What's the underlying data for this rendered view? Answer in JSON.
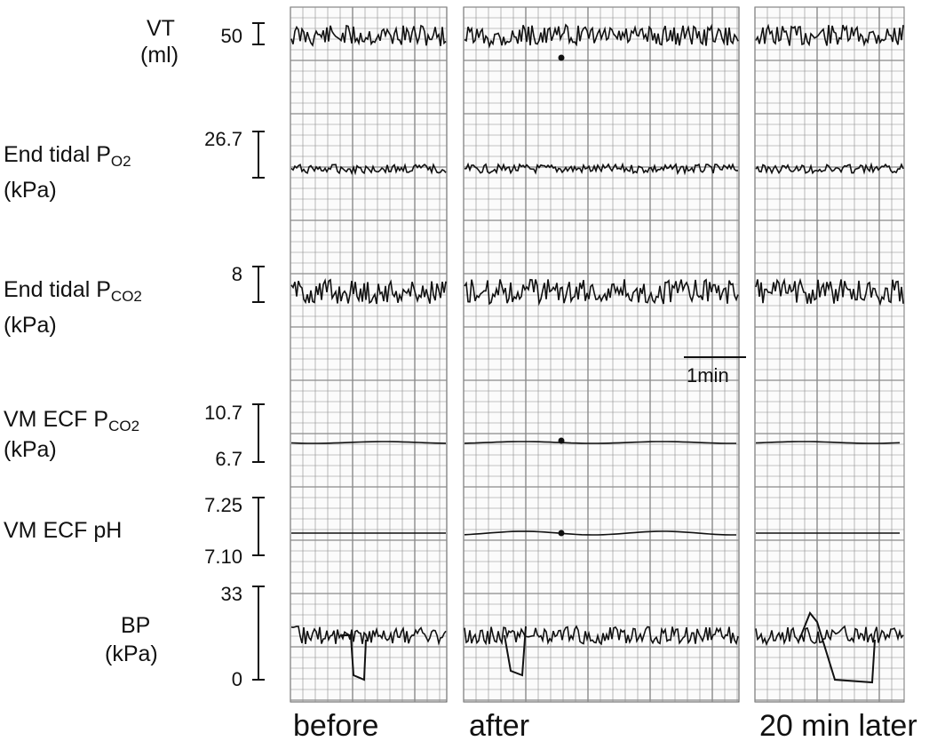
{
  "figure": {
    "conditions": [
      "before",
      "after",
      "20 min later"
    ],
    "scale_bar_label": "1min",
    "traces": [
      {
        "id": "vt",
        "label_main": "VT",
        "label_sub": "",
        "unit": "(ml)",
        "ticks": [
          "50"
        ]
      },
      {
        "id": "po2",
        "label_main": "End tidal P",
        "label_sub": "O2",
        "unit": "(kPa)",
        "ticks": [
          "26.7"
        ]
      },
      {
        "id": "pco2",
        "label_main": "End tidal P",
        "label_sub": "CO2",
        "unit": "(kPa)",
        "ticks": [
          "8"
        ]
      },
      {
        "id": "ecf_pco2",
        "label_main": "VM ECF P",
        "label_sub": "CO2",
        "unit": "(kPa)",
        "ticks": [
          "10.7",
          "6.7"
        ]
      },
      {
        "id": "ecf_ph",
        "label_main": "VM ECF pH",
        "label_sub": "",
        "unit": "",
        "ticks": [
          "7.25",
          "7.10"
        ]
      },
      {
        "id": "bp",
        "label_main": "BP",
        "label_sub": "",
        "unit": "(kPa)",
        "ticks": [
          "33",
          "0"
        ]
      }
    ]
  }
}
